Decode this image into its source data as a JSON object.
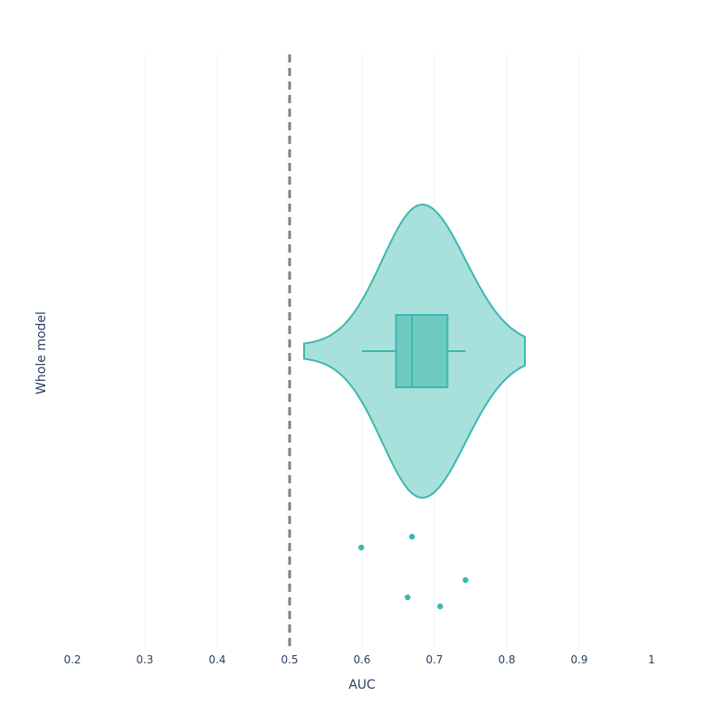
{
  "chart_data": {
    "type": "violin",
    "orientation": "horizontal",
    "xlabel": "AUC",
    "ylabel": "Whole model",
    "xlim": [
      0.2,
      1.0
    ],
    "x_ticks": [
      0.2,
      0.3,
      0.4,
      0.5,
      0.6,
      0.7,
      0.8,
      0.9,
      1.0
    ],
    "x_tick_labels": [
      "0.2",
      "0.3",
      "0.4",
      "0.5",
      "0.6",
      "0.7",
      "0.8",
      "0.9",
      "1"
    ],
    "grid": true,
    "reference_line": {
      "x": 0.5,
      "style": "dashed",
      "color": "#808080"
    },
    "series": [
      {
        "category": "Whole model",
        "color": "#3bb8ae",
        "fill_color": "#a3ded9",
        "violin_range": [
          0.52,
          0.825
        ],
        "mode": 0.683,
        "box": {
          "whisker_low": 0.6,
          "q1": 0.647,
          "median": 0.669,
          "q3": 0.718,
          "whisker_high": 0.743
        },
        "points": [
          {
            "x": 0.599
          },
          {
            "x": 0.669
          },
          {
            "x": 0.743
          },
          {
            "x": 0.663
          },
          {
            "x": 0.708
          }
        ]
      }
    ]
  }
}
